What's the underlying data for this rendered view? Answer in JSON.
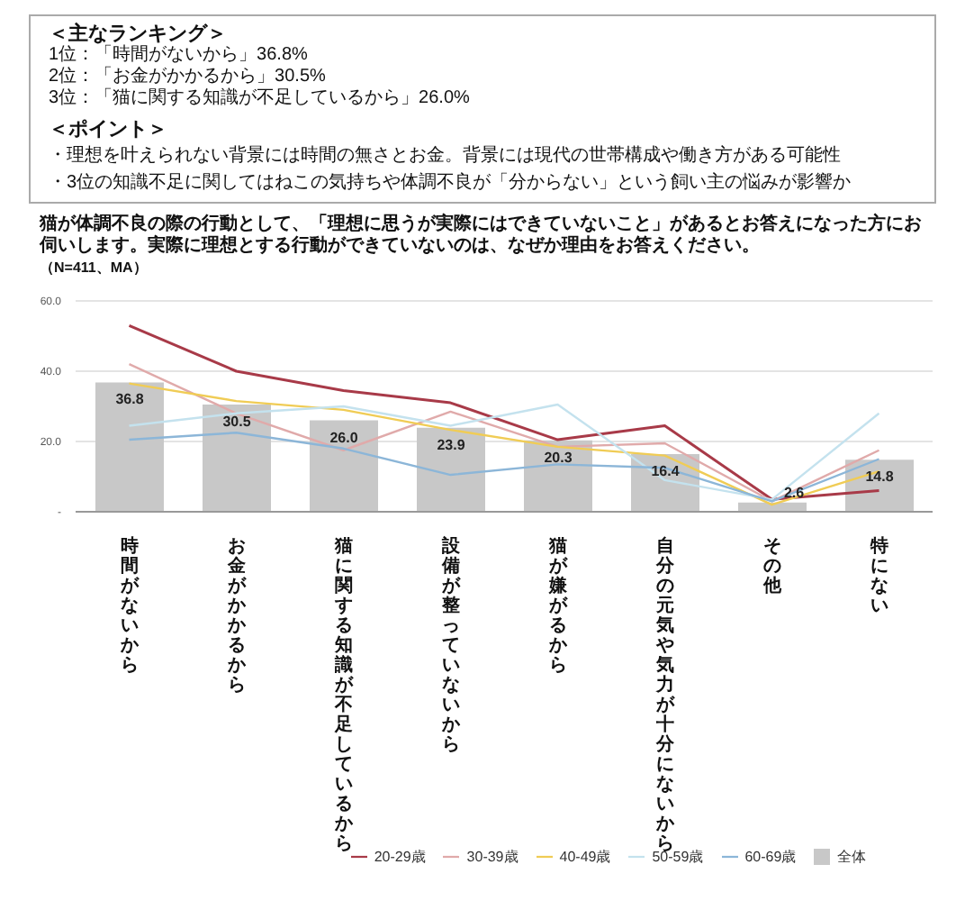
{
  "chart_data": [
    {
      "type": "other",
      "title": "＜主なランキング＞",
      "annotations": [
        "1位：「時間がないから」36.8%",
        "2位：「お金がかかるから」30.5%",
        "3位：「猫に関する知識が不足しているから」26.0%",
        "＜ポイント＞",
        "・理想を叶えられない背景には時間の無さとお金。背景には現代の世帯構成や働き方がある可能性",
        "・3位の知識不足に関してはねこの気持ちや体調不良が「分からない」という飼い主の悩みが影響か"
      ]
    },
    {
      "type": "bar",
      "title": "猫が体調不良の際の行動として、「理想に思うが実際にはできていないこと」があるとお答えになった方にお伺いします。実際に理想とする行動ができていないのは、なぜか理由をお答えください。",
      "subtitle": "（N=411、MA）",
      "categories": [
        "時間がないから",
        "お金がかかるから",
        "猫に関する知識が不足しているから",
        "設備が整っていないから",
        "猫が嫌がるから",
        "自分の元気や気力が十分にないから",
        "その他",
        "特にない"
      ],
      "series": [
        {
          "type": "bar",
          "name": "全体",
          "color": "#c8c8c8",
          "values": [
            36.8,
            30.5,
            26.0,
            23.9,
            20.3,
            16.4,
            2.6,
            14.8
          ],
          "value_labels": [
            "36.8",
            "30.5",
            "26.0",
            "23.9",
            "20.3",
            "16.4",
            "2.6",
            "14.8"
          ]
        },
        {
          "type": "line",
          "name": "20-29歳",
          "color": "#a83a48",
          "values": [
            53,
            40,
            34.5,
            31,
            20.5,
            24.5,
            3.5,
            6
          ]
        },
        {
          "type": "line",
          "name": "30-39歳",
          "color": "#e0aaaa",
          "values": [
            42,
            28,
            17.5,
            28.5,
            18.5,
            19.5,
            3,
            17.5
          ]
        },
        {
          "type": "line",
          "name": "40-49歳",
          "color": "#f0cc55",
          "values": [
            36.5,
            31.5,
            29,
            23.3,
            18.5,
            16,
            2,
            11.5
          ]
        },
        {
          "type": "line",
          "name": "50-59歳",
          "color": "#c4e2ee",
          "values": [
            24.5,
            28,
            30,
            24.5,
            30.5,
            9,
            3.5,
            28
          ]
        },
        {
          "type": "line",
          "name": "60-69歳",
          "color": "#8cb6d8",
          "values": [
            20.5,
            22.5,
            18,
            10.5,
            13.5,
            12.5,
            3,
            15
          ]
        }
      ],
      "ylim": [
        0,
        60
      ],
      "yticks": [
        {
          "value": 0,
          "label": "-"
        },
        {
          "value": 20,
          "label": "20.0"
        },
        {
          "value": 40,
          "label": "40.0"
        },
        {
          "value": 60,
          "label": "60.0"
        }
      ],
      "grid": "y",
      "legend": "bottom",
      "marker": "none"
    }
  ]
}
